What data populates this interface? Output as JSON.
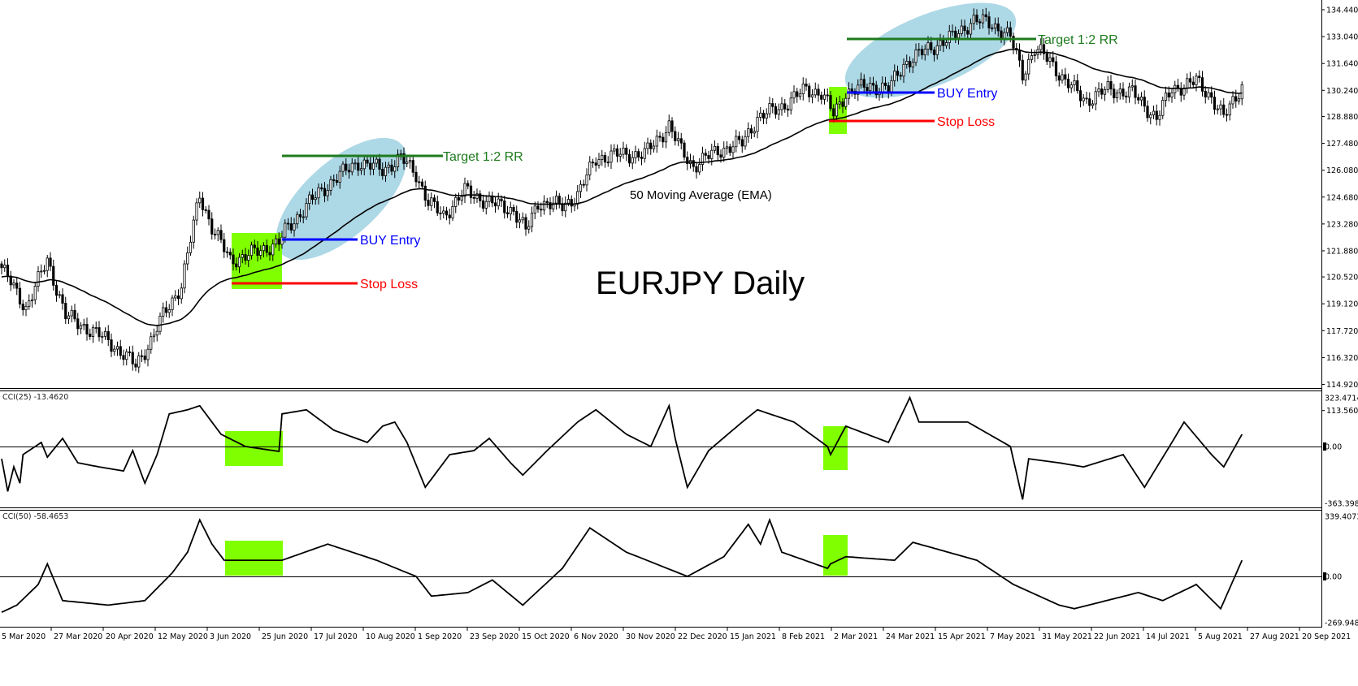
{
  "chart_data": [
    {
      "type": "candlestick",
      "title": "EURJPY Daily",
      "x_unit": "bar index (daily)",
      "ylim": [
        113.56,
        134.44
      ],
      "y_ticks": [
        "134.440",
        "133.040",
        "131.640",
        "130.240",
        "128.880",
        "127.480",
        "126.080",
        "124.680",
        "123.280",
        "121.880",
        "120.520",
        "119.120",
        "117.720",
        "116.320",
        "114.920",
        "113.560"
      ],
      "close_path": [
        [
          0,
          121.0
        ],
        [
          8,
          118.9
        ],
        [
          15,
          121.4
        ],
        [
          21,
          118.5
        ],
        [
          35,
          117.2
        ],
        [
          44,
          115.9
        ],
        [
          49,
          117.2
        ],
        [
          53,
          118.5
        ],
        [
          59,
          120.1
        ],
        [
          65,
          124.8
        ],
        [
          69,
          123.1
        ],
        [
          75,
          121.4
        ],
        [
          80,
          121.6
        ],
        [
          91,
          122.3
        ],
        [
          93,
          122.9
        ],
        [
          101,
          124.4
        ],
        [
          109,
          125.6
        ],
        [
          117,
          126.5
        ],
        [
          125,
          126.1
        ],
        [
          131,
          126.7
        ],
        [
          136,
          125.9
        ],
        [
          140,
          124.4
        ],
        [
          145,
          123.7
        ],
        [
          152,
          125.0
        ],
        [
          160,
          124.4
        ],
        [
          168,
          124.0
        ],
        [
          172,
          122.9
        ],
        [
          176,
          124.4
        ],
        [
          184,
          124.2
        ],
        [
          189,
          124.8
        ],
        [
          195,
          126.7
        ],
        [
          203,
          126.9
        ],
        [
          211,
          126.9
        ],
        [
          219,
          128.4
        ],
        [
          223,
          127.1
        ],
        [
          227,
          126.3
        ],
        [
          235,
          127.1
        ],
        [
          243,
          127.5
        ],
        [
          248,
          128.8
        ],
        [
          256,
          129.4
        ],
        [
          264,
          130.3
        ],
        [
          269,
          130.1
        ],
        [
          273,
          129.0
        ],
        [
          277,
          130.1
        ],
        [
          285,
          130.5
        ],
        [
          291,
          130.3
        ],
        [
          296,
          131.6
        ],
        [
          304,
          132.4
        ],
        [
          312,
          133.0
        ],
        [
          319,
          133.9
        ],
        [
          325,
          133.7
        ],
        [
          331,
          133.0
        ],
        [
          335,
          131.1
        ],
        [
          339,
          132.4
        ],
        [
          344,
          131.8
        ],
        [
          349,
          130.7
        ],
        [
          356,
          129.7
        ],
        [
          363,
          130.3
        ],
        [
          371,
          130.1
        ],
        [
          379,
          128.8
        ],
        [
          384,
          130.3
        ],
        [
          392,
          130.7
        ],
        [
          397,
          129.9
        ],
        [
          401,
          128.8
        ],
        [
          407,
          130.5
        ]
      ],
      "overlay": {
        "name": "50 Moving Average (EMA)",
        "period": 50
      }
    },
    {
      "type": "line",
      "title": "CCI(25) -13.4620",
      "ylim": [
        -363.3985,
        323.4714
      ],
      "y_ticks": [
        "323.4714",
        "0.00",
        "-363.3985"
      ],
      "points": [
        [
          0,
          -75
        ],
        [
          2,
          -275
        ],
        [
          4,
          -125
        ],
        [
          6,
          -225
        ],
        [
          7,
          -50
        ],
        [
          13,
          25
        ],
        [
          15,
          -65
        ],
        [
          20,
          50
        ],
        [
          25,
          -100
        ],
        [
          32,
          -125
        ],
        [
          40,
          -150
        ],
        [
          43,
          -25
        ],
        [
          47,
          -225
        ],
        [
          51,
          -50
        ],
        [
          55,
          200
        ],
        [
          61,
          225
        ],
        [
          65,
          250
        ],
        [
          72,
          75
        ],
        [
          80,
          0
        ],
        [
          91,
          -30
        ],
        [
          92,
          200
        ],
        [
          100,
          225
        ],
        [
          109,
          100
        ],
        [
          120,
          25
        ],
        [
          125,
          125
        ],
        [
          129,
          150
        ],
        [
          133,
          25
        ],
        [
          139,
          -250
        ],
        [
          147,
          -50
        ],
        [
          155,
          -25
        ],
        [
          160,
          50
        ],
        [
          167,
          -100
        ],
        [
          171,
          -175
        ],
        [
          179,
          -25
        ],
        [
          189,
          150
        ],
        [
          195,
          225
        ],
        [
          205,
          75
        ],
        [
          213,
          0
        ],
        [
          219,
          250
        ],
        [
          221,
          50
        ],
        [
          225,
          -250
        ],
        [
          232,
          -25
        ],
        [
          243,
          150
        ],
        [
          248,
          225
        ],
        [
          260,
          150
        ],
        [
          271,
          0
        ],
        [
          272,
          -50
        ],
        [
          277,
          125
        ],
        [
          291,
          25
        ],
        [
          298,
          300
        ],
        [
          301,
          150
        ],
        [
          317,
          150
        ],
        [
          331,
          0
        ],
        [
          335,
          -325
        ],
        [
          337,
          -75
        ],
        [
          347,
          -100
        ],
        [
          355,
          -125
        ],
        [
          368,
          -50
        ],
        [
          375,
          -250
        ],
        [
          384,
          25
        ],
        [
          388,
          150
        ],
        [
          397,
          -50
        ],
        [
          401,
          -125
        ],
        [
          407,
          75
        ]
      ]
    },
    {
      "type": "line",
      "title": "CCI(50) -58.4653",
      "ylim": [
        -269.9484,
        339.4073
      ],
      "y_ticks": [
        "339.4073",
        "0.00",
        "-269.9484"
      ],
      "points": [
        [
          0,
          -200
        ],
        [
          5,
          -160
        ],
        [
          12,
          -45
        ],
        [
          15,
          70
        ],
        [
          20,
          -135
        ],
        [
          35,
          -160
        ],
        [
          47,
          -135
        ],
        [
          56,
          20
        ],
        [
          61,
          135
        ],
        [
          65,
          315
        ],
        [
          69,
          180
        ],
        [
          73,
          90
        ],
        [
          92,
          90
        ],
        [
          107,
          180
        ],
        [
          123,
          90
        ],
        [
          136,
          0
        ],
        [
          141,
          -110
        ],
        [
          153,
          -90
        ],
        [
          161,
          -20
        ],
        [
          171,
          -160
        ],
        [
          184,
          45
        ],
        [
          193,
          270
        ],
        [
          205,
          135
        ],
        [
          225,
          0
        ],
        [
          237,
          110
        ],
        [
          245,
          290
        ],
        [
          249,
          180
        ],
        [
          252,
          315
        ],
        [
          256,
          135
        ],
        [
          271,
          45
        ],
        [
          272,
          70
        ],
        [
          277,
          110
        ],
        [
          293,
          90
        ],
        [
          299,
          190
        ],
        [
          320,
          90
        ],
        [
          332,
          -45
        ],
        [
          347,
          -160
        ],
        [
          352,
          -180
        ],
        [
          373,
          -90
        ],
        [
          381,
          -135
        ],
        [
          392,
          -45
        ],
        [
          400,
          -180
        ],
        [
          407,
          90
        ]
      ]
    }
  ],
  "x_axis_labels": [
    "5 Mar 2020",
    "27 Mar 2020",
    "20 Apr 2020",
    "12 May 2020",
    "3 Jun 2020",
    "25 Jun 2020",
    "17 Jul 2020",
    "10 Aug 2020",
    "1 Sep 2020",
    "23 Sep 2020",
    "15 Oct 2020",
    "6 Nov 2020",
    "30 Nov 2020",
    "22 Dec 2020",
    "15 Jan 2021",
    "8 Feb 2021",
    "2 Mar 2021",
    "24 Mar 2021",
    "15 Apr 2021",
    "7 May 2021",
    "31 May 2021",
    "22 Jun 2021",
    "14 Jul 2021",
    "5 Aug 2021",
    "27 Aug 2021",
    "20 Sep 2021"
  ],
  "annotations": {
    "title": "EURJPY Daily",
    "ema_label": "50 Moving Average (EMA)",
    "trade1": {
      "target": "Target 1:2 RR",
      "entry": "BUY Entry",
      "stop": "Stop Loss"
    },
    "trade2": {
      "target": "Target 1:2 RR",
      "entry": "BUY Entry",
      "stop": "Stop Loss"
    }
  },
  "colors": {
    "setup_box": "#80ff00",
    "trend_ellipse": "#add8e6",
    "target": "#1e7b1e",
    "entry": "#0000ff",
    "stop": "#ff0000",
    "candle_bear": "#000000",
    "candle_bull": "#ffffff"
  }
}
